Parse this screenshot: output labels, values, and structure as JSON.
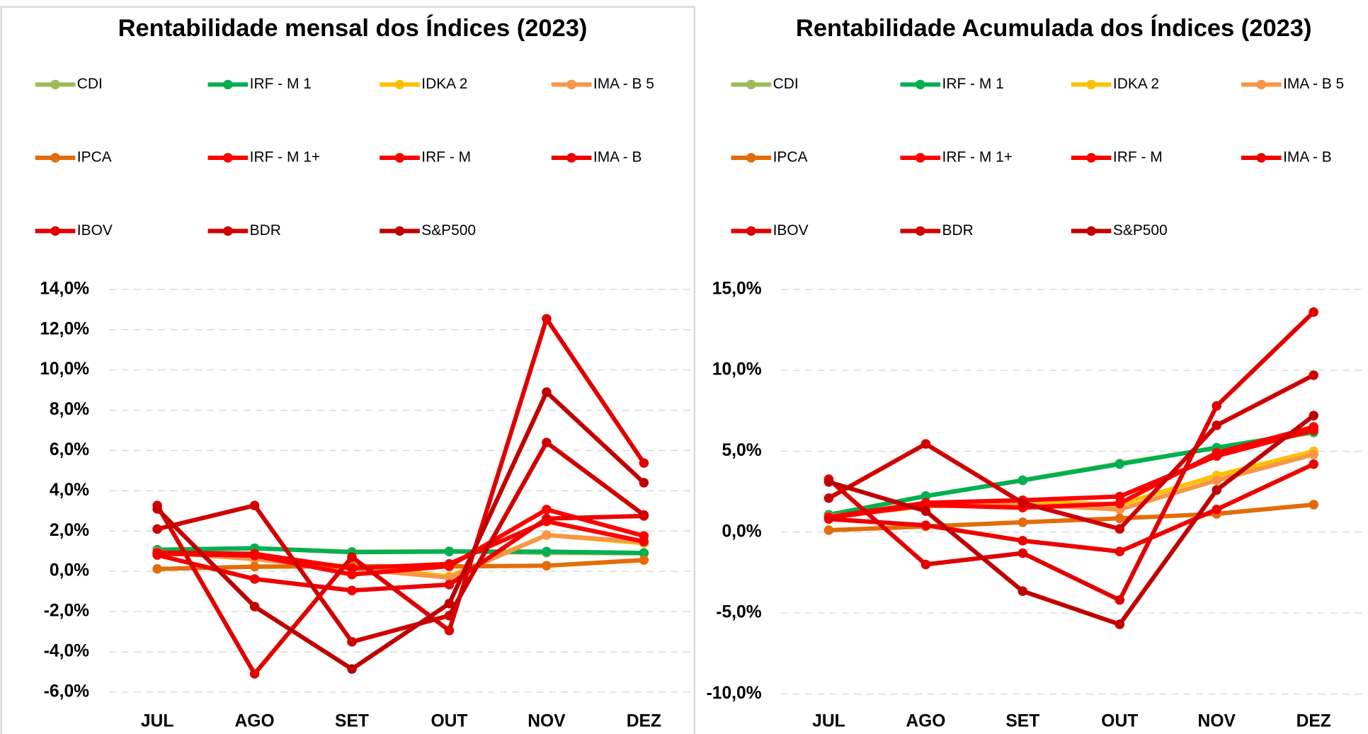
{
  "chart_data": [
    {
      "type": "line",
      "title": "Rentabilidade mensal dos Índices (2023)",
      "categories": [
        "JUL",
        "AGO",
        "SET",
        "OUT",
        "NOV",
        "DEZ"
      ],
      "ylim": [
        -6,
        14
      ],
      "yticks": [
        {
          "value": -6,
          "label": "-6,0%"
        },
        {
          "value": -4,
          "label": "-4,0%"
        },
        {
          "value": -2,
          "label": "-2,0%"
        },
        {
          "value": 0,
          "label": "0,0%"
        },
        {
          "value": 2,
          "label": "2,0%"
        },
        {
          "value": 4,
          "label": "4,0%"
        },
        {
          "value": 6,
          "label": "6,0%"
        },
        {
          "value": 8,
          "label": "8,0%"
        },
        {
          "value": 10,
          "label": "10,0%"
        },
        {
          "value": 12,
          "label": "12,0%"
        },
        {
          "value": 14,
          "label": "14,0%"
        }
      ],
      "grid": true,
      "series": [
        {
          "name": "CDI",
          "color": "#9bbb59",
          "values": [
            1.07,
            1.14,
            0.97,
            1.0,
            0.92,
            0.9
          ]
        },
        {
          "name": "IRF - M 1",
          "color": "#00b050",
          "values": [
            1.07,
            1.15,
            0.95,
            0.98,
            0.98,
            0.91
          ]
        },
        {
          "name": "IDKA 2",
          "color": "#ffc000",
          "values": [
            0.95,
            0.6,
            0.24,
            -0.25,
            1.8,
            1.4
          ]
        },
        {
          "name": "IMA - B 5",
          "color": "#f79646",
          "values": [
            0.97,
            0.61,
            0.13,
            -0.31,
            1.8,
            1.46
          ]
        },
        {
          "name": "IPCA",
          "color": "#e36c09",
          "values": [
            0.12,
            0.23,
            0.26,
            0.24,
            0.28,
            0.56
          ]
        },
        {
          "name": "IRF - M 1+",
          "color": "#ff0000",
          "values": [
            0.88,
            0.78,
            -0.16,
            0.26,
            3.07,
            1.76
          ]
        },
        {
          "name": "IRF - M",
          "color": "#fa0000",
          "values": [
            0.93,
            0.87,
            0.15,
            0.37,
            2.48,
            1.48
          ]
        },
        {
          "name": "IMA - B",
          "color": "#ee0000",
          "values": [
            0.81,
            -0.38,
            -0.95,
            -0.66,
            2.62,
            2.75
          ]
        },
        {
          "name": "IBOV",
          "color": "#e00000",
          "values": [
            3.27,
            -5.09,
            0.71,
            -2.94,
            12.54,
            5.38
          ]
        },
        {
          "name": "BDR",
          "color": "#d00000",
          "values": [
            2.1,
            3.27,
            -3.5,
            -2.2,
            6.4,
            2.8
          ]
        },
        {
          "name": "S&P500",
          "color": "#c00000",
          "values": [
            3.1,
            -1.75,
            -4.85,
            -1.6,
            8.9,
            4.4
          ]
        }
      ]
    },
    {
      "type": "line",
      "title": "Rentabilidade Acumulada dos Índices (2023)",
      "categories": [
        "JUL",
        "AGO",
        "SET",
        "OUT",
        "NOV",
        "DEZ"
      ],
      "ylim": [
        -10,
        15
      ],
      "yticks": [
        {
          "value": -10,
          "label": "-10,0%"
        },
        {
          "value": -5,
          "label": "-5,0%"
        },
        {
          "value": 0,
          "label": "0,0%"
        },
        {
          "value": 5,
          "label": "5,0%"
        },
        {
          "value": 10,
          "label": "10,0%"
        },
        {
          "value": 15,
          "label": "15,0%"
        }
      ],
      "grid": true,
      "series": [
        {
          "name": "CDI",
          "color": "#9bbb59",
          "values": [
            1.07,
            2.22,
            3.21,
            4.24,
            5.2,
            6.15
          ]
        },
        {
          "name": "IRF - M 1",
          "color": "#00b050",
          "values": [
            1.07,
            2.23,
            3.2,
            4.2,
            5.22,
            6.2
          ]
        },
        {
          "name": "IDKA 2",
          "color": "#ffc000",
          "values": [
            0.95,
            1.6,
            1.9,
            1.7,
            3.5,
            5.0
          ]
        },
        {
          "name": "IMA - B 5",
          "color": "#f79646",
          "values": [
            0.97,
            1.6,
            1.7,
            1.4,
            3.2,
            4.8
          ]
        },
        {
          "name": "IPCA",
          "color": "#e36c09",
          "values": [
            0.12,
            0.35,
            0.61,
            0.85,
            1.13,
            1.7
          ]
        },
        {
          "name": "IRF - M 1+",
          "color": "#ff0000",
          "values": [
            0.88,
            1.67,
            1.51,
            1.77,
            4.9,
            6.5
          ]
        },
        {
          "name": "IRF - M",
          "color": "#fa0000",
          "values": [
            0.93,
            1.81,
            1.97,
            2.2,
            4.7,
            6.3
          ]
        },
        {
          "name": "IMA - B",
          "color": "#ee0000",
          "values": [
            0.81,
            0.42,
            -0.53,
            -1.2,
            1.4,
            4.2
          ]
        },
        {
          "name": "IBOV",
          "color": "#e00000",
          "values": [
            3.27,
            -2.0,
            -1.3,
            -4.2,
            7.8,
            13.6
          ]
        },
        {
          "name": "BDR",
          "color": "#d00000",
          "values": [
            2.1,
            5.45,
            1.8,
            0.2,
            6.6,
            9.7
          ]
        },
        {
          "name": "S&P500",
          "color": "#c00000",
          "values": [
            3.1,
            1.3,
            -3.65,
            -5.7,
            2.6,
            7.2
          ]
        }
      ]
    }
  ]
}
